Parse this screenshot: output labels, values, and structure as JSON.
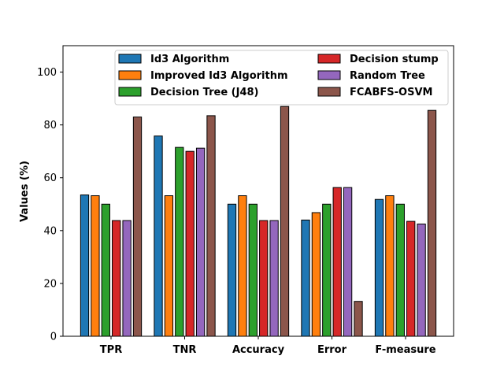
{
  "chart_data": {
    "type": "bar",
    "title": "",
    "xlabel": "",
    "ylabel": "Values (%)",
    "ylim": [
      0,
      110
    ],
    "yticks": [
      0,
      20,
      40,
      60,
      80,
      100
    ],
    "grid": false,
    "legend_position": "top-center",
    "legend_columns": 2,
    "categories": [
      "TPR",
      "TNR",
      "Accuracy",
      "Error",
      "F-measure"
    ],
    "series": [
      {
        "name": "Id3 Algorithm",
        "color": "#1f77b4",
        "values": [
          53.5,
          75.8,
          50.0,
          44.0,
          51.8
        ]
      },
      {
        "name": "Improved Id3 Algorithm",
        "color": "#ff7f0e",
        "values": [
          53.2,
          53.2,
          53.2,
          46.8,
          53.2
        ]
      },
      {
        "name": "Decision Tree (J48)",
        "color": "#2ca02c",
        "values": [
          50.0,
          71.5,
          50.0,
          50.0,
          50.0
        ]
      },
      {
        "name": "Decision stump",
        "color": "#d62728",
        "values": [
          43.8,
          70.0,
          43.8,
          56.3,
          43.5
        ]
      },
      {
        "name": "Random Tree",
        "color": "#9467bd",
        "values": [
          43.8,
          71.2,
          43.8,
          56.3,
          42.5
        ]
      },
      {
        "name": "FCABFS-OSVM",
        "color": "#8c564b",
        "values": [
          83.0,
          83.5,
          87.0,
          13.2,
          85.5
        ]
      }
    ]
  }
}
